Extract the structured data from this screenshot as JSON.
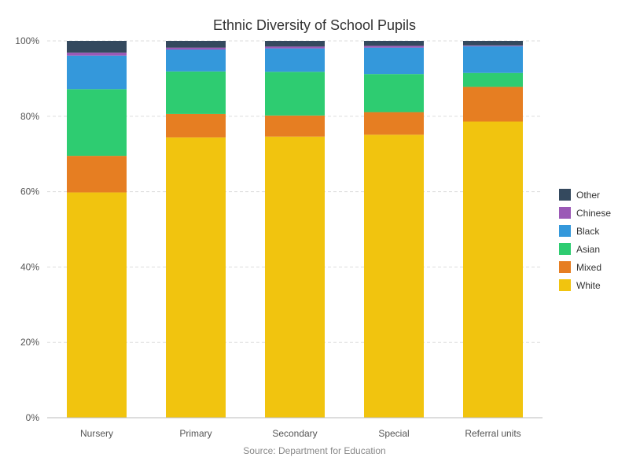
{
  "chart_data": {
    "type": "bar",
    "stacked": true,
    "title": "Ethnic Diversity of School Pupils",
    "source": "Source: Department for Education",
    "categories": [
      "Nursery",
      "Primary",
      "Secondary",
      "Special",
      "Referral units"
    ],
    "ylim": [
      0,
      100
    ],
    "yticks": [
      "0%",
      "20%",
      "40%",
      "60%",
      "80%",
      "100%"
    ],
    "grid": true,
    "legend_position": "right",
    "series": [
      {
        "name": "White",
        "color": "#f1c40f",
        "values": [
          59.8,
          74.4,
          74.6,
          75.1,
          78.6
        ]
      },
      {
        "name": "Mixed",
        "color": "#e67e22",
        "values": [
          9.7,
          6.2,
          5.6,
          6.0,
          9.2
        ]
      },
      {
        "name": "Asian",
        "color": "#2ecc71",
        "values": [
          17.7,
          11.3,
          11.6,
          10.1,
          3.7
        ]
      },
      {
        "name": "Black",
        "color": "#3498db",
        "values": [
          8.9,
          5.8,
          6.2,
          7.0,
          7.1
        ]
      },
      {
        "name": "Chinese",
        "color": "#9b59b6",
        "values": [
          0.8,
          0.5,
          0.5,
          0.5,
          0.2
        ]
      },
      {
        "name": "Other",
        "color": "#34495e",
        "values": [
          3.1,
          1.8,
          1.5,
          1.3,
          1.2
        ]
      }
    ]
  }
}
